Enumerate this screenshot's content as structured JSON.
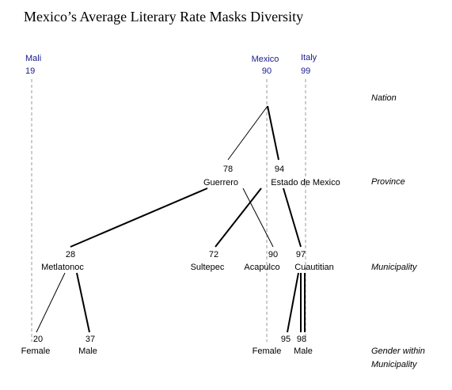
{
  "title": "Mexico’s Average Literary Rate Masks Diversity",
  "references": [
    {
      "label": "Mali",
      "value": 19
    },
    {
      "label": "Mexico",
      "value": 90
    },
    {
      "label": "Italy",
      "value": 99
    }
  ],
  "levels": [
    "Nation",
    "Province",
    "Municipality",
    "Gender within",
    "Municipality"
  ],
  "nodes": [
    {
      "label": "Guerrero",
      "value": 78
    },
    {
      "label": "Estado de Mexico",
      "value": 94
    },
    {
      "label": "Metlatonoc",
      "value": 28
    },
    {
      "label": "Sultepec",
      "value": 72
    },
    {
      "label": "Acapulco",
      "value": 90
    },
    {
      "label": "Cuautitian",
      "value": 97
    },
    {
      "label": "Female",
      "value": 20
    },
    {
      "label": "Male",
      "value": 37
    },
    {
      "label": "Female",
      "value": 95
    },
    {
      "label": "Male",
      "value": 98
    }
  ]
}
